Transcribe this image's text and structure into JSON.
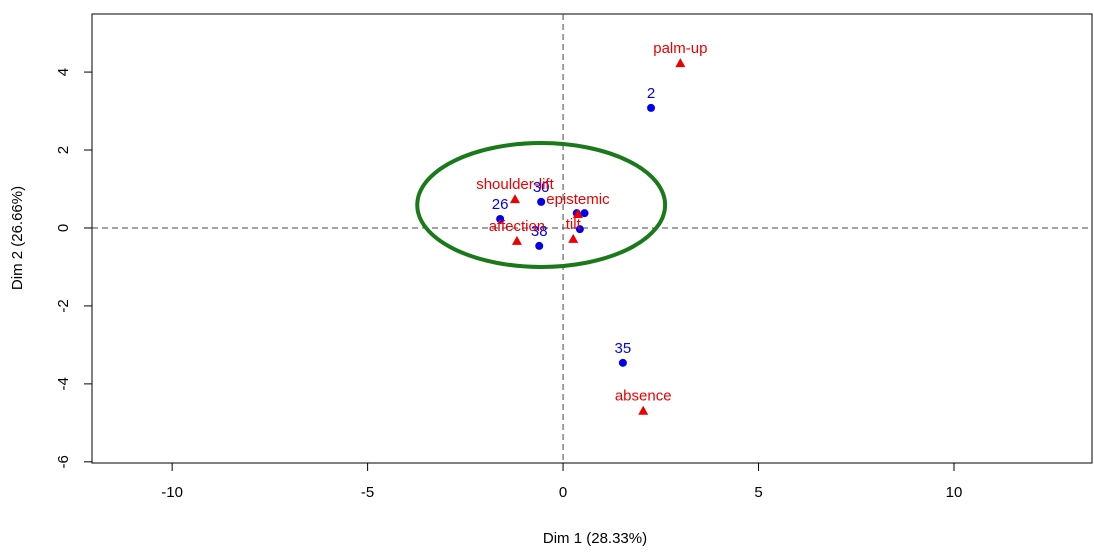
{
  "chart_data": {
    "type": "scatter",
    "x_label": "Dim 1 (28.33%)",
    "y_label": "Dim 2 (26.66%)",
    "xlim": [
      -12.05,
      13.53
    ],
    "ylim": [
      -6.03,
      5.49
    ],
    "xticks": [
      -10,
      -5,
      0,
      5,
      10
    ],
    "yticks": [
      -6,
      -4,
      -2,
      0,
      2,
      4
    ],
    "reference_lines": {
      "x": 0,
      "y": 0
    },
    "ellipse": {
      "center": [
        -0.56,
        0.59
      ],
      "radii": [
        3.17,
        1.59
      ],
      "color": "#1a7a1a"
    },
    "series": [
      {
        "color": "#0000ee",
        "marker": "circle",
        "x": [
          2.25,
          1.53,
          -1.61,
          -0.56,
          -0.61,
          0.43,
          0.35,
          0.55
        ],
        "values": [
          3.08,
          -3.46,
          0.23,
          0.67,
          -0.46,
          -0.03,
          0.38,
          0.38
        ],
        "labels": [
          "2",
          "35",
          "26",
          "30",
          "38",
          null,
          null,
          null
        ]
      },
      {
        "color": "#ee0000",
        "marker": "triangle",
        "x": [
          3.0,
          2.05,
          -1.23,
          -1.18,
          0.26,
          0.38
        ],
        "values": [
          4.23,
          -4.69,
          0.74,
          -0.33,
          -0.28,
          0.36
        ],
        "labels": [
          "palm-up",
          "absence",
          "shoulder-lift",
          "affection",
          "tilt",
          "epistemic"
        ]
      }
    ]
  }
}
